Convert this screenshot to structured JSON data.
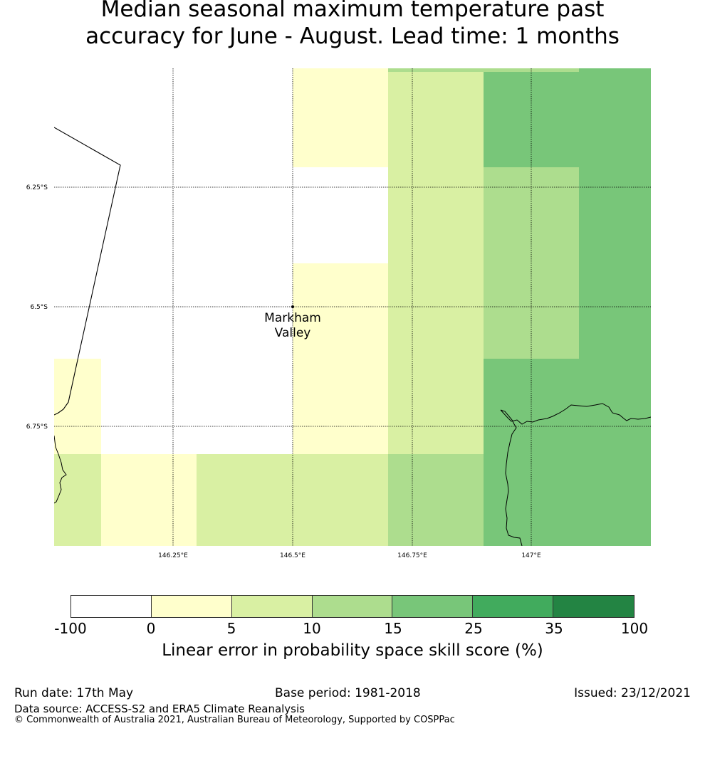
{
  "title": {
    "line1": "Median seasonal maximum temperature past",
    "line2": "accuracy for June - August. Lead time: 1 months"
  },
  "map": {
    "lat_labels": [
      "6.25°S",
      "6.5°S",
      "6.75°S"
    ],
    "lon_labels": [
      "146.25°E",
      "146.5°E",
      "146.75°E",
      "147°E"
    ],
    "location": {
      "name_line1": "Markham",
      "name_line2": "Valley"
    }
  },
  "colorbar": {
    "ticks": [
      "-100",
      "0",
      "5",
      "10",
      "15",
      "25",
      "35",
      "100"
    ],
    "colors": [
      "#ffffff",
      "#ffffcc",
      "#d9f0a3",
      "#addd8e",
      "#78c679",
      "#41ab5d",
      "#238443"
    ],
    "label": "Linear error in probability space skill score (%)"
  },
  "footer": {
    "run_date": "Run date: 17th May",
    "base_period": "Base period: 1981-2018",
    "issued": "Issued: 23/12/2021",
    "data_source": "Data source: ACCESS-S2 and ERA5 Climate Reanalysis",
    "copyright": "© Commonwealth of Australia 2021, Australian Bureau of Meteorology, Supported by COSPPac"
  }
}
